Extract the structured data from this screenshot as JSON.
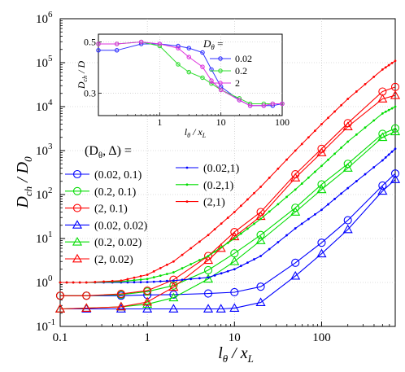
{
  "chart_data": [
    {
      "type": "line",
      "xlabel": "l_θ / x_L",
      "ylabel": "D_ch / D_0",
      "xscale": "log",
      "yscale": "log",
      "xlim": [
        0.1,
        700
      ],
      "ylim": [
        0.1,
        1000000
      ],
      "x_ticks": [
        "0.1",
        "1",
        "10",
        "100"
      ],
      "y_ticks": [
        "10^-1",
        "10^0",
        "10^1",
        "10^2",
        "10^3",
        "10^4",
        "10^5",
        "10^6"
      ],
      "legend_title": "(Dθ, Δ) =",
      "legend_placement": "center-left",
      "grid": true,
      "series": [
        {
          "name": "(0.02, 0.1)",
          "color": "#0000ff",
          "marker": "circle",
          "x": [
            0.1,
            0.2,
            0.5,
            1,
            2,
            5,
            10,
            20,
            50,
            100,
            200,
            500,
            700
          ],
          "y": [
            0.5,
            0.5,
            0.5,
            0.52,
            0.53,
            0.56,
            0.6,
            0.8,
            2.8,
            8,
            26,
            160,
            300
          ]
        },
        {
          "name": "(0.2, 0.1)",
          "color": "#00dd00",
          "marker": "circle",
          "x": [
            0.1,
            0.2,
            0.5,
            1,
            2,
            5,
            10,
            20,
            50,
            100,
            200,
            500,
            700
          ],
          "y": [
            0.5,
            0.5,
            0.53,
            0.62,
            0.85,
            1.9,
            4.6,
            12,
            50,
            170,
            500,
            2400,
            3200
          ]
        },
        {
          "name": "(2, 0.1)",
          "color": "#ff0000",
          "marker": "circle",
          "x": [
            0.1,
            0.2,
            0.5,
            1,
            2,
            5,
            10,
            20,
            50,
            100,
            200,
            500,
            700
          ],
          "y": [
            0.5,
            0.5,
            0.55,
            0.65,
            1.15,
            4,
            14,
            40,
            290,
            1100,
            4200,
            22000,
            28000
          ]
        },
        {
          "name": "(0.02, 0.02)",
          "color": "#0000ff",
          "marker": "triangle",
          "x": [
            0.1,
            0.2,
            0.5,
            1,
            2,
            5,
            7,
            10,
            20,
            50,
            100,
            200,
            500,
            700
          ],
          "y": [
            0.25,
            0.25,
            0.25,
            0.25,
            0.25,
            0.25,
            0.25,
            0.26,
            0.35,
            1.4,
            4.5,
            16,
            120,
            220
          ]
        },
        {
          "name": "(0.2, 0.02)",
          "color": "#00dd00",
          "marker": "triangle",
          "x": [
            0.1,
            0.2,
            0.5,
            1,
            2,
            5,
            10,
            20,
            50,
            100,
            200,
            500,
            700
          ],
          "y": [
            0.25,
            0.26,
            0.28,
            0.32,
            0.45,
            1.2,
            3,
            9,
            40,
            130,
            400,
            2000,
            2700
          ]
        },
        {
          "name": "(2, 0.02)",
          "color": "#ff0000",
          "marker": "triangle",
          "x": [
            0.1,
            0.2,
            0.5,
            1,
            2,
            5,
            7,
            10,
            20,
            50,
            100,
            200,
            500,
            700
          ],
          "y": [
            0.25,
            0.26,
            0.28,
            0.36,
            0.78,
            3.2,
            6,
            11,
            32,
            240,
            900,
            3500,
            15000,
            18000
          ]
        },
        {
          "name": "(0.02,1)",
          "color": "#0000ff",
          "marker": "dot",
          "x": [
            0.1,
            0.2,
            0.5,
            1,
            2,
            5,
            10,
            20,
            50,
            100,
            200,
            500,
            700
          ],
          "y": [
            1,
            1,
            1,
            1.02,
            1.1,
            1.3,
            2,
            4,
            17,
            45,
            140,
            600,
            1100
          ]
        },
        {
          "name": "(0.2,1)",
          "color": "#00dd00",
          "marker": "dot",
          "x": [
            0.1,
            0.2,
            0.5,
            1,
            2,
            5,
            10,
            20,
            50,
            100,
            200,
            500,
            700
          ],
          "y": [
            1,
            1,
            1.05,
            1.2,
            1.7,
            4,
            10,
            28,
            130,
            450,
            1600,
            7000,
            10000
          ]
        },
        {
          "name": "(2,1)",
          "color": "#ff0000",
          "marker": "dot",
          "x": [
            0.1,
            0.2,
            0.5,
            1,
            2,
            5,
            10,
            20,
            50,
            100,
            200,
            500,
            700
          ],
          "y": [
            1,
            1,
            1.1,
            1.5,
            3,
            12,
            40,
            150,
            1000,
            4000,
            15000,
            70000,
            110000
          ]
        }
      ]
    },
    {
      "type": "line",
      "xlabel": "l_θ / x_L",
      "ylabel": "D_ch / D",
      "xscale": "log",
      "yscale": "log",
      "xlim": [
        0.1,
        100
      ],
      "ylim": [
        0.24,
        0.54
      ],
      "x_ticks": [
        "1",
        "10",
        "100"
      ],
      "y_ticks": [
        "0.3",
        "0.5"
      ],
      "legend_title": "Dθ =",
      "legend_placement": "top-right",
      "grid": true,
      "series": [
        {
          "name": "0.02",
          "color": "#3333ff",
          "marker": "circle",
          "x": [
            0.1,
            0.2,
            0.5,
            1,
            2,
            3,
            5,
            7,
            10,
            20,
            30,
            50,
            70,
            100
          ],
          "y": [
            0.46,
            0.46,
            0.49,
            0.49,
            0.48,
            0.47,
            0.45,
            0.38,
            0.32,
            0.28,
            0.265,
            0.265,
            0.265,
            0.27
          ]
        },
        {
          "name": "0.2",
          "color": "#33dd33",
          "marker": "circle",
          "x": [
            0.1,
            0.2,
            0.5,
            1,
            2,
            3,
            5,
            7,
            10,
            20,
            30,
            50,
            70,
            100
          ],
          "y": [
            0.49,
            0.49,
            0.5,
            0.48,
            0.4,
            0.37,
            0.35,
            0.33,
            0.31,
            0.285,
            0.27,
            0.27,
            0.27,
            0.27
          ]
        },
        {
          "name": "2",
          "color": "#dd33dd",
          "marker": "circle",
          "x": [
            0.1,
            0.2,
            0.5,
            1,
            2,
            3,
            5,
            7,
            10,
            20,
            30,
            50,
            70,
            100
          ],
          "y": [
            0.49,
            0.49,
            0.5,
            0.49,
            0.47,
            0.43,
            0.39,
            0.34,
            0.31,
            0.28,
            0.265,
            0.265,
            0.27,
            0.27
          ]
        }
      ]
    }
  ]
}
